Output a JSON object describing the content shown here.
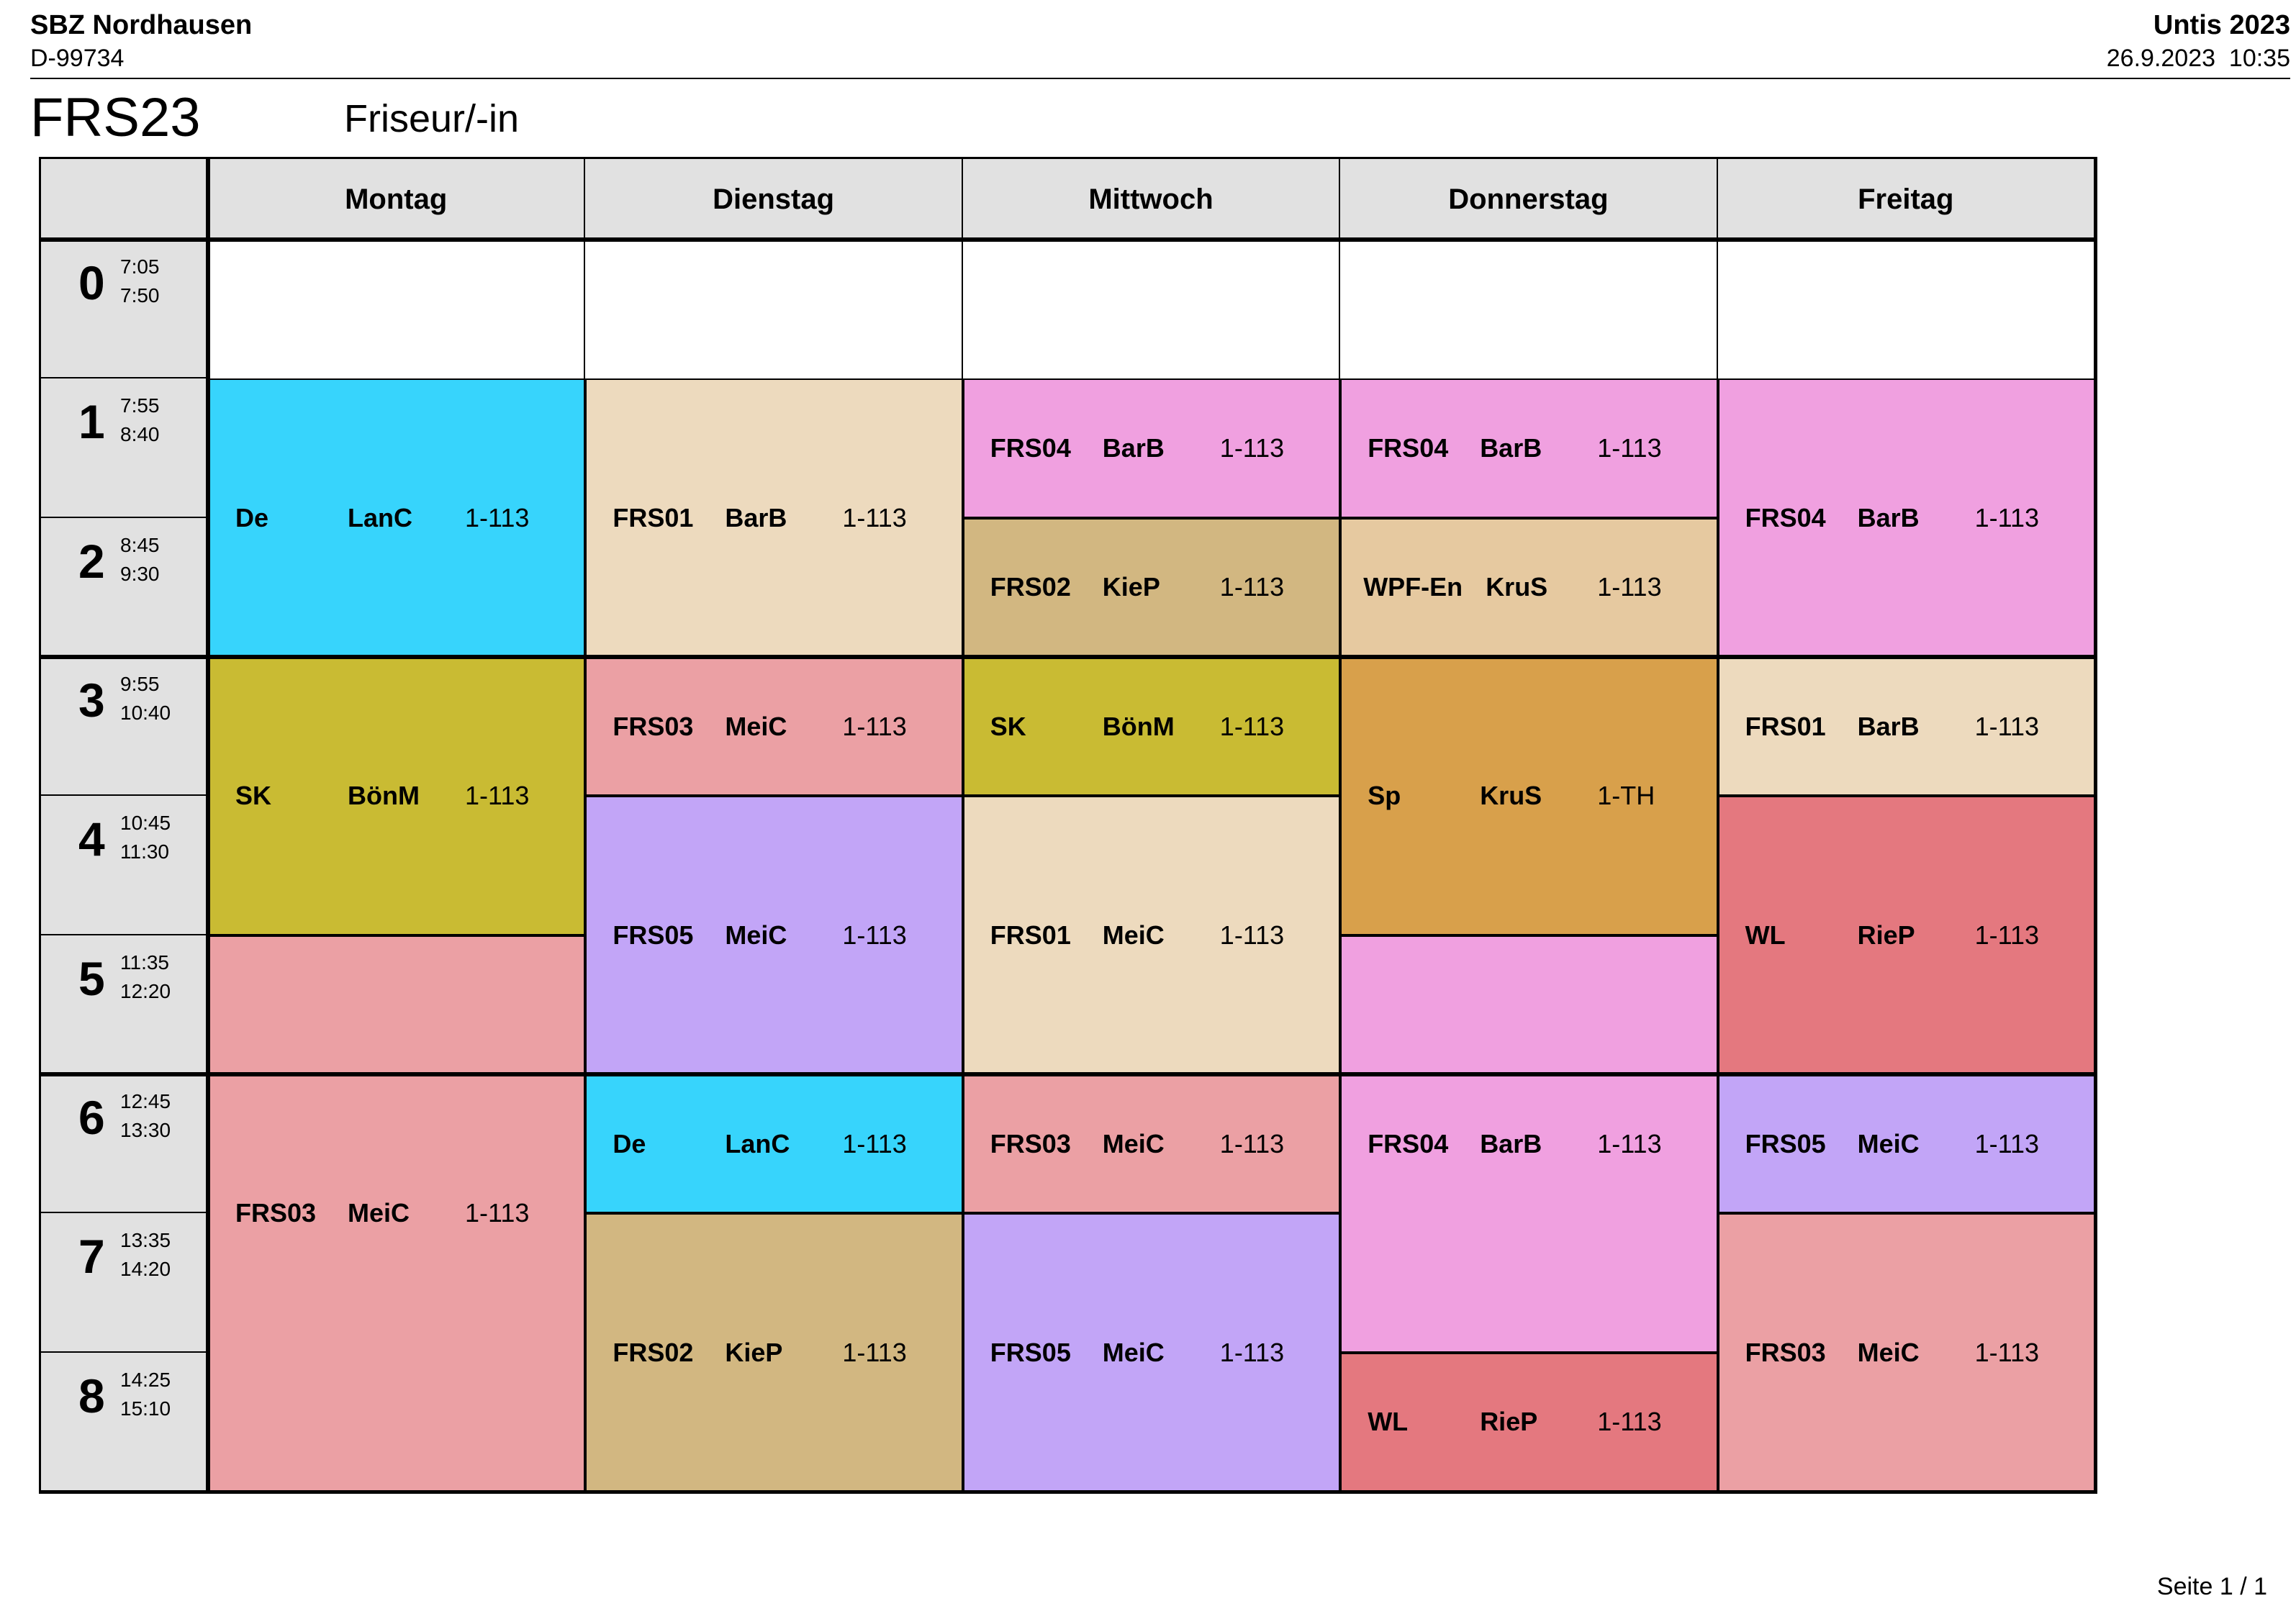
{
  "header": {
    "school": "SBZ Nordhausen",
    "school_code": "D-99734",
    "app": "Untis 2023",
    "printed": "26.9.2023  10:35"
  },
  "timetable": {
    "class_code": "FRS23",
    "class_name": "Friseur/-in",
    "days": [
      "Montag",
      "Dienstag",
      "Mittwoch",
      "Donnerstag",
      "Freitag"
    ],
    "periods": [
      {
        "num": "0",
        "start": "7:05",
        "end": "7:50"
      },
      {
        "num": "1",
        "start": "7:55",
        "end": "8:40"
      },
      {
        "num": "2",
        "start": "8:45",
        "end": "9:30"
      },
      {
        "num": "3",
        "start": "9:55",
        "end": "10:40"
      },
      {
        "num": "4",
        "start": "10:45",
        "end": "11:30"
      },
      {
        "num": "5",
        "start": "11:35",
        "end": "12:20"
      },
      {
        "num": "6",
        "start": "12:45",
        "end": "13:30"
      },
      {
        "num": "7",
        "start": "13:35",
        "end": "14:20"
      },
      {
        "num": "8",
        "start": "14:25",
        "end": "15:10"
      }
    ],
    "lessons": [
      {
        "day": 0,
        "from": 1,
        "to": 2,
        "subject": "De",
        "teacher": "LanC",
        "room": "1-113",
        "color": "#37d4fc"
      },
      {
        "day": 0,
        "from": 3,
        "to": 4,
        "subject": "SK",
        "teacher": "BönM",
        "room": "1-113",
        "color": "#c9bb33"
      },
      {
        "day": 0,
        "from": 5,
        "to": 8,
        "subject": "FRS03",
        "teacher": "MeiC",
        "room": "1-113",
        "color": "#eba0a4"
      },
      {
        "day": 1,
        "from": 1,
        "to": 2,
        "subject": "FRS01",
        "teacher": "BarB",
        "room": "1-113",
        "color": "#eddabe"
      },
      {
        "day": 1,
        "from": 3,
        "to": 3,
        "subject": "FRS03",
        "teacher": "MeiC",
        "room": "1-113",
        "color": "#eba0a4"
      },
      {
        "day": 1,
        "from": 4,
        "to": 5,
        "subject": "FRS05",
        "teacher": "MeiC",
        "room": "1-113",
        "color": "#c2a5f7"
      },
      {
        "day": 1,
        "from": 6,
        "to": 6,
        "subject": "De",
        "teacher": "LanC",
        "room": "1-113",
        "color": "#37d4fc"
      },
      {
        "day": 1,
        "from": 7,
        "to": 8,
        "subject": "FRS02",
        "teacher": "KieP",
        "room": "1-113",
        "color": "#d2b781"
      },
      {
        "day": 2,
        "from": 1,
        "to": 1,
        "subject": "FRS04",
        "teacher": "BarB",
        "room": "1-113",
        "color": "#f0a0e0"
      },
      {
        "day": 2,
        "from": 2,
        "to": 2,
        "subject": "FRS02",
        "teacher": "KieP",
        "room": "1-113",
        "color": "#d2b781"
      },
      {
        "day": 2,
        "from": 3,
        "to": 3,
        "subject": "SK",
        "teacher": "BönM",
        "room": "1-113",
        "color": "#c9bb33"
      },
      {
        "day": 2,
        "from": 4,
        "to": 5,
        "subject": "FRS01",
        "teacher": "MeiC",
        "room": "1-113",
        "color": "#eddabe"
      },
      {
        "day": 2,
        "from": 6,
        "to": 6,
        "subject": "FRS03",
        "teacher": "MeiC",
        "room": "1-113",
        "color": "#eba0a4"
      },
      {
        "day": 2,
        "from": 7,
        "to": 8,
        "subject": "FRS05",
        "teacher": "MeiC",
        "room": "1-113",
        "color": "#c2a5f7"
      },
      {
        "day": 3,
        "from": 1,
        "to": 1,
        "subject": "FRS04",
        "teacher": "BarB",
        "room": "1-113",
        "color": "#f0a0e0"
      },
      {
        "day": 3,
        "from": 2,
        "to": 2,
        "subject": "WPF-En",
        "teacher": "KruS",
        "room": "1-113",
        "color": "#e6c9a0"
      },
      {
        "day": 3,
        "from": 3,
        "to": 4,
        "subject": "Sp",
        "teacher": "KruS",
        "room": "1-TH",
        "color": "#d8a04b"
      },
      {
        "day": 3,
        "from": 5,
        "to": 7,
        "subject": "FRS04",
        "teacher": "BarB",
        "room": "1-113",
        "color": "#f0a0e0"
      },
      {
        "day": 3,
        "from": 8,
        "to": 8,
        "subject": "WL",
        "teacher": "RieP",
        "room": "1-113",
        "color": "#e4787f"
      },
      {
        "day": 4,
        "from": 1,
        "to": 2,
        "subject": "FRS04",
        "teacher": "BarB",
        "room": "1-113",
        "color": "#f0a0e0"
      },
      {
        "day": 4,
        "from": 3,
        "to": 3,
        "subject": "FRS01",
        "teacher": "BarB",
        "room": "1-113",
        "color": "#eddabe"
      },
      {
        "day": 4,
        "from": 4,
        "to": 5,
        "subject": "WL",
        "teacher": "RieP",
        "room": "1-113",
        "color": "#e4787f"
      },
      {
        "day": 4,
        "from": 6,
        "to": 6,
        "subject": "FRS05",
        "teacher": "MeiC",
        "room": "1-113",
        "color": "#c2a5f7"
      },
      {
        "day": 4,
        "from": 7,
        "to": 8,
        "subject": "FRS03",
        "teacher": "MeiC",
        "room": "1-113",
        "color": "#eba0a4"
      }
    ]
  },
  "footer": {
    "page": "Seite 1 / 1"
  }
}
